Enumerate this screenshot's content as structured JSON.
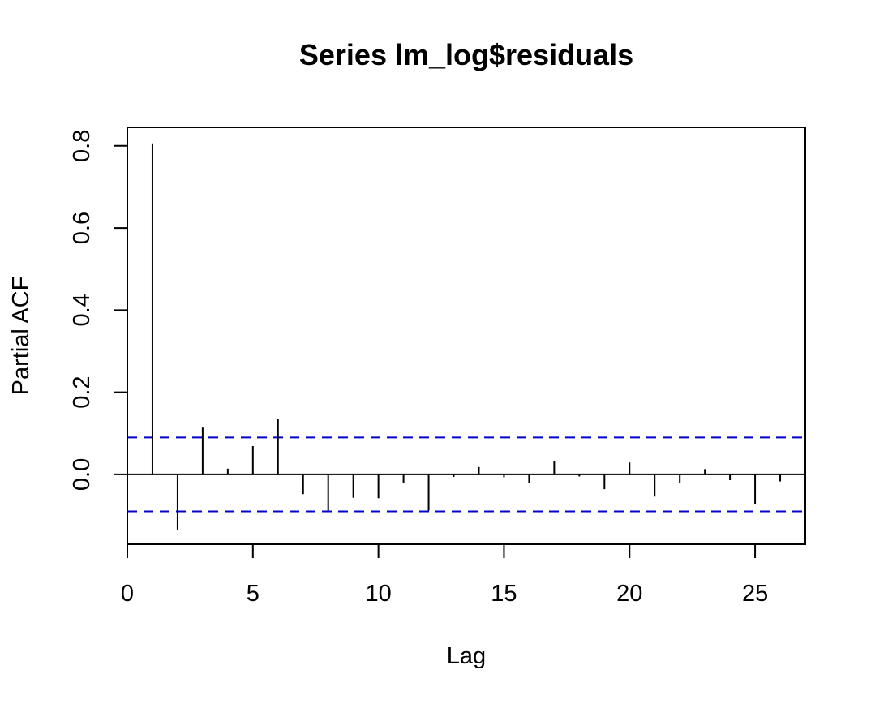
{
  "chart_data": {
    "type": "bar",
    "title": "Series  lm_log$residuals",
    "xlabel": "Lag",
    "ylabel": "Partial ACF",
    "xlim": [
      0,
      27
    ],
    "ylim": [
      -0.17,
      0.845
    ],
    "x_ticks": [
      0,
      5,
      10,
      15,
      20,
      25
    ],
    "y_ticks": [
      0.0,
      0.2,
      0.4,
      0.6,
      0.8
    ],
    "x_tick_labels": [
      "0",
      "5",
      "10",
      "15",
      "20",
      "25"
    ],
    "y_tick_labels": [
      "0.0",
      "0.2",
      "0.4",
      "0.6",
      "0.8"
    ],
    "lags": [
      1,
      2,
      3,
      4,
      5,
      6,
      7,
      8,
      9,
      10,
      11,
      12,
      13,
      14,
      15,
      16,
      17,
      18,
      19,
      20,
      21,
      22,
      23,
      24,
      25,
      26
    ],
    "values": [
      0.806,
      -0.135,
      0.114,
      0.014,
      0.069,
      0.135,
      -0.048,
      -0.088,
      -0.057,
      -0.058,
      -0.02,
      -0.088,
      -0.006,
      0.018,
      -0.007,
      -0.02,
      0.032,
      -0.005,
      -0.036,
      0.029,
      -0.054,
      -0.021,
      0.013,
      -0.014,
      -0.073,
      -0.017
    ],
    "ci_upper": 0.09,
    "ci_lower": -0.09,
    "zero_line": 0,
    "colors": {
      "bars": "#000000",
      "ci": "#0000cc",
      "axes": "#000000"
    },
    "grid": false
  }
}
